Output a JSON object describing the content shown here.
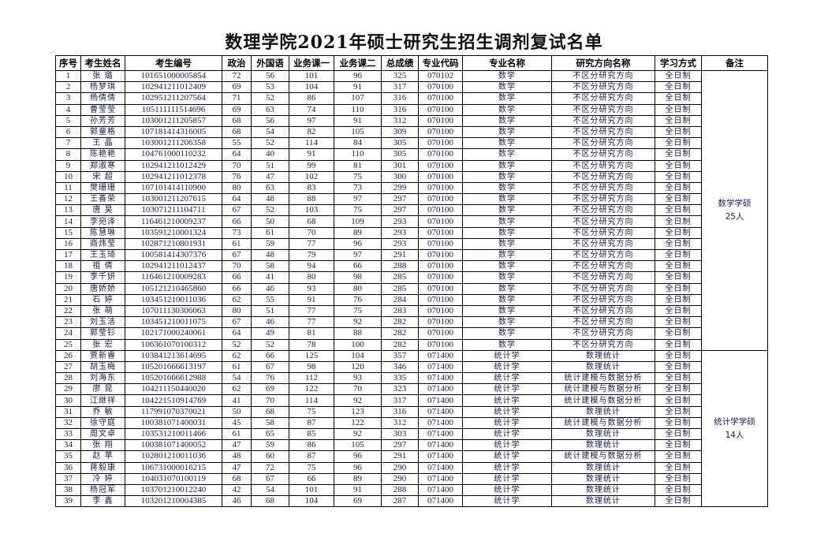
{
  "title": "数理学院2021年硕士研究生招生调剂复试名单",
  "columns": [
    "序号",
    "考生姓名",
    "考生编号",
    "政治",
    "外国语",
    "业务课一",
    "业务课二",
    "总成绩",
    "专业代码",
    "专业名称",
    "研究方向名称",
    "学习方式",
    "备注"
  ],
  "rows": [
    [
      "1",
      "张  璐",
      "101651000005854",
      "72",
      "56",
      "101",
      "96",
      "325",
      "070102",
      "数学",
      "不区分研究方向",
      "全日制"
    ],
    [
      "2",
      "杨梦琪",
      "102941211012409",
      "69",
      "53",
      "104",
      "91",
      "317",
      "070100",
      "数学",
      "不区分研究方向",
      "全日制"
    ],
    [
      "3",
      "杨倩倩",
      "102951211207564",
      "71",
      "52",
      "86",
      "107",
      "316",
      "070100",
      "数学",
      "不区分研究方向",
      "全日制"
    ],
    [
      "4",
      "曹莹莹",
      "105111111514696",
      "69",
      "63",
      "74",
      "110",
      "316",
      "070100",
      "数学",
      "不区分研究方向",
      "全日制"
    ],
    [
      "5",
      "孙芳芳",
      "103001211205857",
      "68",
      "56",
      "97",
      "91",
      "312",
      "070100",
      "数学",
      "不区分研究方向",
      "全日制"
    ],
    [
      "6",
      "郭童格",
      "107181414316005",
      "68",
      "54",
      "82",
      "105",
      "309",
      "070100",
      "数学",
      "不区分研究方向",
      "全日制"
    ],
    [
      "7",
      "王  晶",
      "103001211206358",
      "55",
      "52",
      "114",
      "84",
      "305",
      "070100",
      "数学",
      "不区分研究方向",
      "全日制"
    ],
    [
      "8",
      "陈艳艳",
      "104761000110232",
      "64",
      "40",
      "91",
      "110",
      "305",
      "070100",
      "数学",
      "不区分研究方向",
      "全日制"
    ],
    [
      "9",
      "郑淑寒",
      "102941211012429",
      "70",
      "51",
      "99",
      "81",
      "301",
      "070100",
      "数学",
      "不区分研究方向",
      "全日制"
    ],
    [
      "10",
      "宋  超",
      "102941211012378",
      "76",
      "47",
      "102",
      "75",
      "300",
      "070100",
      "数学",
      "不区分研究方向",
      "全日制"
    ],
    [
      "11",
      "樊珊珊",
      "107101414110900",
      "80",
      "63",
      "83",
      "73",
      "299",
      "070100",
      "数学",
      "不区分研究方向",
      "全日制"
    ],
    [
      "12",
      "王善荣",
      "103001211207615",
      "64",
      "48",
      "88",
      "97",
      "297",
      "070100",
      "数学",
      "不区分研究方向",
      "全日制"
    ],
    [
      "13",
      "唐  昊",
      "103071211104711",
      "67",
      "52",
      "103",
      "75",
      "297",
      "070100",
      "数学",
      "不区分研究方向",
      "全日制"
    ],
    [
      "14",
      "李宛泽",
      "116461210009237",
      "66",
      "50",
      "68",
      "109",
      "293",
      "070100",
      "数学",
      "不区分研究方向",
      "全日制"
    ],
    [
      "15",
      "陈慧琳",
      "103591210001324",
      "73",
      "61",
      "70",
      "89",
      "293",
      "070100",
      "数学",
      "不区分研究方向",
      "全日制"
    ],
    [
      "16",
      "商炜莹",
      "102871210801931",
      "61",
      "59",
      "77",
      "96",
      "293",
      "070100",
      "数学",
      "不区分研究方向",
      "全日制"
    ],
    [
      "17",
      "王玉琦",
      "100581414307376",
      "67",
      "48",
      "79",
      "97",
      "291",
      "070100",
      "数学",
      "不区分研究方向",
      "全日制"
    ],
    [
      "18",
      "祖  倩",
      "102941211012437",
      "70",
      "58",
      "94",
      "66",
      "288",
      "070100",
      "数学",
      "不区分研究方向",
      "全日制"
    ],
    [
      "19",
      "李千妍",
      "116461210009283",
      "66",
      "41",
      "80",
      "98",
      "285",
      "070100",
      "数学",
      "不区分研究方向",
      "全日制"
    ],
    [
      "20",
      "唐娇娇",
      "105121210465860",
      "66",
      "46",
      "93",
      "80",
      "285",
      "070100",
      "数学",
      "不区分研究方向",
      "全日制"
    ],
    [
      "21",
      "石  婷",
      "103451210011036",
      "62",
      "55",
      "91",
      "76",
      "284",
      "070100",
      "数学",
      "不区分研究方向",
      "全日制"
    ],
    [
      "22",
      "张  萌",
      "107011130306063",
      "80",
      "51",
      "77",
      "75",
      "283",
      "070100",
      "数学",
      "不区分研究方向",
      "全日制"
    ],
    [
      "23",
      "刘玉洁",
      "103451210011075",
      "67",
      "46",
      "77",
      "92",
      "282",
      "070100",
      "数学",
      "不区分研究方向",
      "全日制"
    ],
    [
      "24",
      "郭莹钐",
      "102171000240061",
      "64",
      "49",
      "81",
      "88",
      "282",
      "070100",
      "数学",
      "不区分研究方向",
      "全日制"
    ],
    [
      "25",
      "张  宏",
      "106361070100312",
      "52",
      "52",
      "78",
      "100",
      "282",
      "070100",
      "数学",
      "不区分研究方向",
      "全日制"
    ],
    [
      "26",
      "贾新睿",
      "103841213614695",
      "62",
      "66",
      "125",
      "104",
      "357",
      "071400",
      "统计学",
      "数理统计",
      "全日制"
    ],
    [
      "27",
      "胡玉梅",
      "105201666613197",
      "61",
      "67",
      "98",
      "120",
      "346",
      "071400",
      "统计学",
      "数理统计",
      "全日制"
    ],
    [
      "28",
      "刘海东",
      "105201666612988",
      "54",
      "76",
      "112",
      "93",
      "335",
      "071400",
      "统计学",
      "统计建模与数据分析",
      "全日制"
    ],
    [
      "29",
      "廖  昆",
      "104211150440020",
      "62",
      "69",
      "122",
      "70",
      "323",
      "071400",
      "统计学",
      "统计建模与数据分析",
      "全日制"
    ],
    [
      "30",
      "江继祥",
      "104221510914769",
      "41",
      "70",
      "114",
      "92",
      "317",
      "071400",
      "统计学",
      "统计建模与数据分析",
      "全日制"
    ],
    [
      "31",
      "乔  敏",
      "117991070370021",
      "50",
      "68",
      "75",
      "123",
      "316",
      "071400",
      "统计学",
      "数理统计",
      "全日制"
    ],
    [
      "32",
      "徐守庭",
      "100381071400031",
      "45",
      "58",
      "87",
      "122",
      "312",
      "071400",
      "统计学",
      "统计建模与数据分析",
      "全日制"
    ],
    [
      "33",
      "周文卓",
      "103531210011466",
      "61",
      "65",
      "85",
      "92",
      "303",
      "071400",
      "统计学",
      "数理统计",
      "全日制"
    ],
    [
      "34",
      "张  翔",
      "100381071400052",
      "47",
      "59",
      "86",
      "105",
      "297",
      "071400",
      "统计学",
      "数理统计",
      "全日制"
    ],
    [
      "35",
      "赵  苹",
      "102801210011036",
      "48",
      "60",
      "87",
      "96",
      "291",
      "071400",
      "统计学",
      "统计建模与数据分析",
      "全日制"
    ],
    [
      "36",
      "蒋毅康",
      "106731000016215",
      "47",
      "72",
      "75",
      "96",
      "290",
      "071400",
      "统计学",
      "数理统计",
      "全日制"
    ],
    [
      "37",
      "冷  婷",
      "104031070100119",
      "68",
      "67",
      "66",
      "89",
      "290",
      "071400",
      "统计学",
      "数理统计",
      "全日制"
    ],
    [
      "38",
      "杨冠军",
      "103701210012240",
      "42",
      "54",
      "101",
      "91",
      "288",
      "071400",
      "统计学",
      "数理统计",
      "全日制"
    ],
    [
      "39",
      "李  鑫",
      "103201210004385",
      "46",
      "68",
      "104",
      "69",
      "287",
      "071400",
      "统计学",
      "数理统计",
      "全日制"
    ]
  ],
  "remarks": [
    {
      "line1": "数学学硕",
      "line2": "25人",
      "span": 25
    },
    {
      "line1": "统计学学硕",
      "line2": "14人",
      "span": 14
    }
  ]
}
